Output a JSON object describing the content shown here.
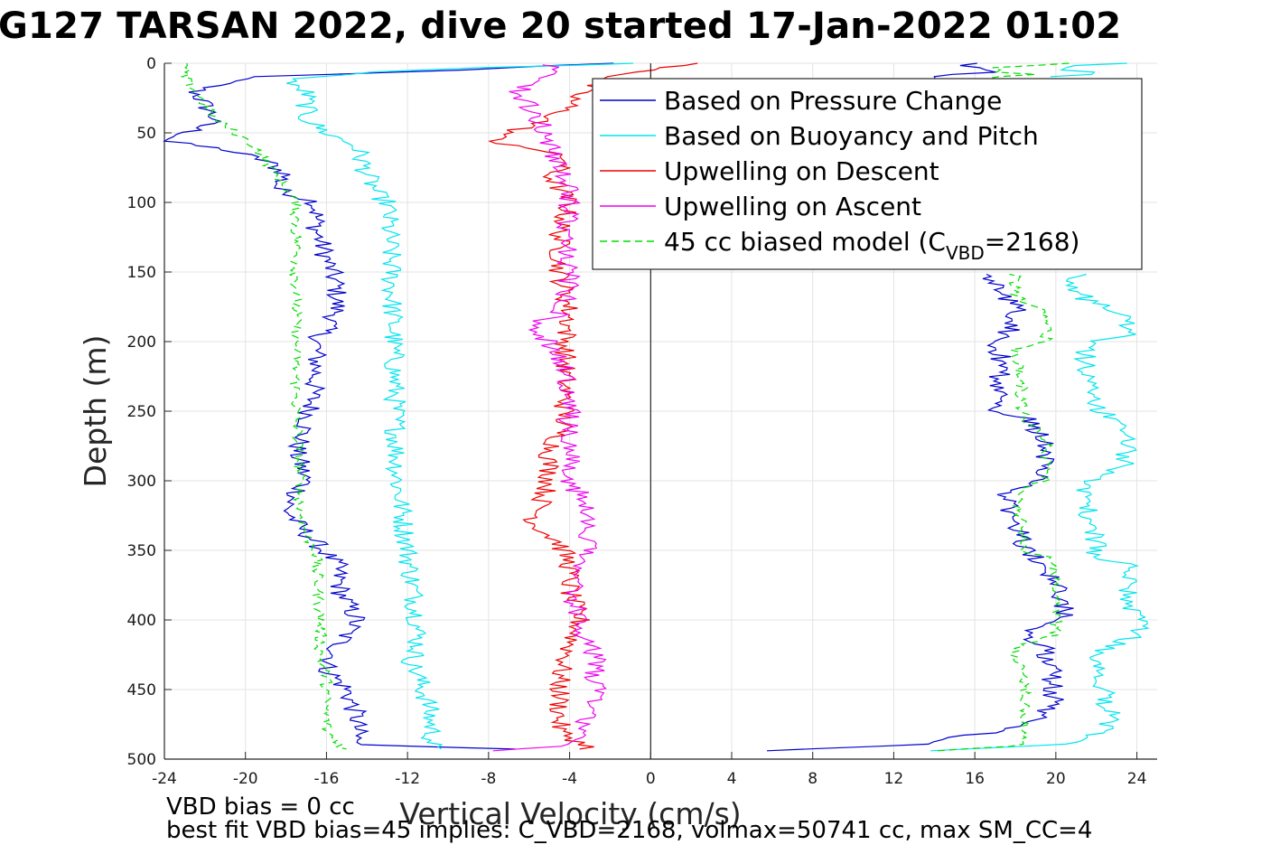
{
  "title": "G127 TARSAN 2022, dive 20 started 17-Jan-2022 01:02",
  "footer": {
    "line1": "VBD bias = 0 cc",
    "line2": "best fit VBD bias=45 implies: C_VBD=2168, volmax=50741 cc, max SM_CC=4"
  },
  "legend": {
    "items": [
      {
        "label": "Based on Pressure Change",
        "color": "#0000cc",
        "style": "solid"
      },
      {
        "label": "Based on Buoyancy and Pitch",
        "color": "#00e5ee",
        "style": "solid"
      },
      {
        "label": "Upwelling on Descent",
        "color": "#ee0000",
        "style": "solid"
      },
      {
        "label": "Upwelling on Ascent",
        "color": "#ee00ee",
        "style": "solid"
      },
      {
        "label": "45 cc biased model (C",
        "sub": "VBD",
        "suffix": "=2168)",
        "color": "#00dd00",
        "style": "dashed"
      }
    ]
  },
  "chart_data": {
    "type": "line",
    "title": "G127 TARSAN 2022, dive 20 started 17-Jan-2022 01:02",
    "xlabel": "Vertical Velocity (cm/s)",
    "ylabel": "Depth (m)",
    "xlim": [
      -24,
      25
    ],
    "ylim": [
      500,
      0
    ],
    "y_reversed": true,
    "grid": true,
    "legend_position": "top-right",
    "xticks": [
      -24,
      -20,
      -16,
      -12,
      -8,
      -4,
      0,
      4,
      8,
      12,
      16,
      20,
      24
    ],
    "yticks": [
      0,
      50,
      100,
      150,
      200,
      250,
      300,
      350,
      400,
      450,
      500
    ],
    "zero_line_x": 0,
    "series": [
      {
        "name": "Based on Pressure Change",
        "color": "#0000cc",
        "dash": false,
        "descent": {
          "depth": [
            0,
            5,
            10,
            20,
            30,
            40,
            50,
            56,
            62,
            70,
            80,
            90,
            100,
            120,
            140,
            160,
            180,
            200,
            220,
            250,
            280,
            300,
            320,
            330,
            345,
            360,
            380,
            400,
            420,
            435,
            450,
            470,
            490,
            494
          ],
          "v": [
            -2,
            -10,
            -20,
            -22.5,
            -22,
            -21.5,
            -22.8,
            -24,
            -21,
            -19,
            -18,
            -18.5,
            -16.5,
            -16.5,
            -16,
            -15.5,
            -15.5,
            -16.5,
            -16.5,
            -16.8,
            -17.5,
            -17,
            -18,
            -17.5,
            -16.5,
            -15.5,
            -15.3,
            -14.5,
            -15.5,
            -16,
            -15,
            -14.5,
            -14.5,
            -3
          ]
        },
        "ascent": {
          "depth": [
            494,
            490,
            480,
            470,
            460,
            450,
            440,
            420,
            410,
            400,
            380,
            360,
            350,
            330,
            310,
            300,
            280,
            270,
            255,
            250,
            230,
            210,
            200,
            190,
            175,
            160,
            150
          ],
          "v": [
            6,
            13,
            17,
            19,
            20,
            19.8,
            19.8,
            19.5,
            18.5,
            20.5,
            20.3,
            19.5,
            18.5,
            18,
            17.5,
            19,
            19.5,
            19.5,
            18.5,
            17,
            17.2,
            17.3,
            17,
            18,
            18,
            17,
            16.5
          ]
        },
        "surface": {
          "depth": [
            0,
            5,
            15
          ],
          "v": [
            16,
            17,
            12
          ]
        }
      },
      {
        "name": "Based on Buoyancy and Pitch",
        "color": "#00e5ee",
        "dash": false,
        "descent": {
          "depth": [
            0,
            5,
            10,
            15,
            20,
            40,
            50,
            60,
            80,
            95,
            100,
            150,
            200,
            250,
            300,
            350,
            400,
            420,
            430,
            440,
            460,
            480,
            494
          ],
          "v": [
            -1,
            -12,
            -17,
            -18,
            -17,
            -17,
            -16,
            -14.5,
            -14,
            -13.5,
            -13,
            -12.8,
            -12.7,
            -12.6,
            -12.5,
            -12,
            -11.5,
            -11.5,
            -11.8,
            -11.5,
            -11,
            -10.8,
            -10.8
          ]
        },
        "ascent": {
          "depth": [
            494,
            490,
            480,
            470,
            460,
            440,
            430,
            420,
            415,
            410,
            400,
            380,
            360,
            355,
            350,
            330,
            320,
            300,
            290,
            280,
            270,
            255,
            250,
            220,
            200,
            198,
            195,
            180,
            170,
            160,
            150
          ],
          "v": [
            14,
            20,
            22.5,
            22.8,
            22.5,
            22.3,
            22,
            22.5,
            23.5,
            24,
            24,
            23.5,
            23.5,
            22,
            22,
            21.8,
            21.5,
            21.5,
            23.5,
            23.5,
            23.5,
            23,
            22,
            21.5,
            21.5,
            23,
            23.5,
            23.5,
            21.5,
            21,
            21
          ]
        },
        "surface": {
          "depth": [
            0,
            3,
            6,
            10
          ],
          "v": [
            23,
            20,
            22,
            20
          ]
        }
      },
      {
        "name": "Upwelling on Descent",
        "color": "#ee0000",
        "dash": false,
        "descent": {
          "depth": [
            0,
            3,
            10,
            20,
            30,
            40,
            50,
            56,
            60,
            70,
            80,
            100,
            120,
            150,
            180,
            200,
            230,
            260,
            280,
            300,
            320,
            330,
            345,
            360,
            380,
            400,
            420,
            440,
            460,
            480,
            492,
            494
          ],
          "v": [
            2,
            1,
            -2,
            -3.5,
            -4,
            -5,
            -7,
            -8,
            -6,
            -4,
            -5,
            -4,
            -4.5,
            -4.5,
            -4,
            -4.2,
            -4.2,
            -4.3,
            -5,
            -5,
            -5.5,
            -5.8,
            -4.5,
            -4,
            -4,
            -3.5,
            -4,
            -4.5,
            -4.5,
            -4.5,
            -3,
            -3
          ]
        }
      },
      {
        "name": "Upwelling on Ascent",
        "color": "#ee00ee",
        "dash": false,
        "ascent": {
          "depth": [
            494,
            490,
            480,
            470,
            460,
            450,
            440,
            430,
            420,
            400,
            380,
            360,
            345,
            330,
            310,
            300,
            280,
            260,
            240,
            220,
            200,
            190,
            180,
            160,
            140,
            120,
            100,
            80,
            60,
            40,
            20,
            10,
            5,
            0
          ],
          "v": [
            -8,
            -4,
            -3.5,
            -3,
            -3,
            -2.5,
            -3,
            -2.5,
            -3,
            -3.5,
            -4,
            -3.5,
            -3,
            -3,
            -3.5,
            -4,
            -4,
            -4,
            -4,
            -4.2,
            -5,
            -6,
            -4.5,
            -4,
            -4.2,
            -4.2,
            -4,
            -4.2,
            -5,
            -5.5,
            -6.5,
            -5,
            -5,
            -5
          ]
        }
      },
      {
        "name": "45 cc biased model (C_VBD=2168)",
        "color": "#00dd00",
        "dash": true,
        "descent": {
          "depth": [
            0,
            5,
            10,
            20,
            30,
            40,
            50,
            60,
            80,
            100,
            120,
            150,
            200,
            250,
            300,
            320,
            340,
            350,
            360,
            400,
            420,
            430,
            440,
            460,
            480,
            494
          ],
          "v": [
            -23,
            -23,
            -23,
            -22.5,
            -22,
            -21.5,
            -20.5,
            -19.5,
            -18.5,
            -17.5,
            -17.5,
            -17.5,
            -17.5,
            -17.5,
            -17.3,
            -17.3,
            -17,
            -16.5,
            -16.5,
            -16.3,
            -16.3,
            -16.3,
            -16,
            -16,
            -16,
            -15
          ]
        },
        "ascent": {
          "depth": [
            494,
            490,
            480,
            470,
            460,
            440,
            430,
            420,
            410,
            400,
            380,
            360,
            355,
            350,
            330,
            310,
            305,
            300,
            290,
            280,
            270,
            255,
            250,
            230,
            205,
            200,
            190,
            180,
            170,
            165,
            150
          ],
          "v": [
            14,
            18.5,
            18.5,
            18.5,
            18.5,
            18.5,
            18,
            18,
            20,
            20,
            20,
            20,
            19.5,
            18.5,
            18.3,
            18,
            18.5,
            19.5,
            19.5,
            19.5,
            19.5,
            18.5,
            18.3,
            18.3,
            18,
            19.5,
            19.5,
            19.5,
            18.3,
            18,
            18
          ]
        },
        "surface": {
          "depth": [
            0,
            4,
            8,
            12
          ],
          "v": [
            20,
            16,
            18,
            17
          ]
        }
      }
    ]
  }
}
